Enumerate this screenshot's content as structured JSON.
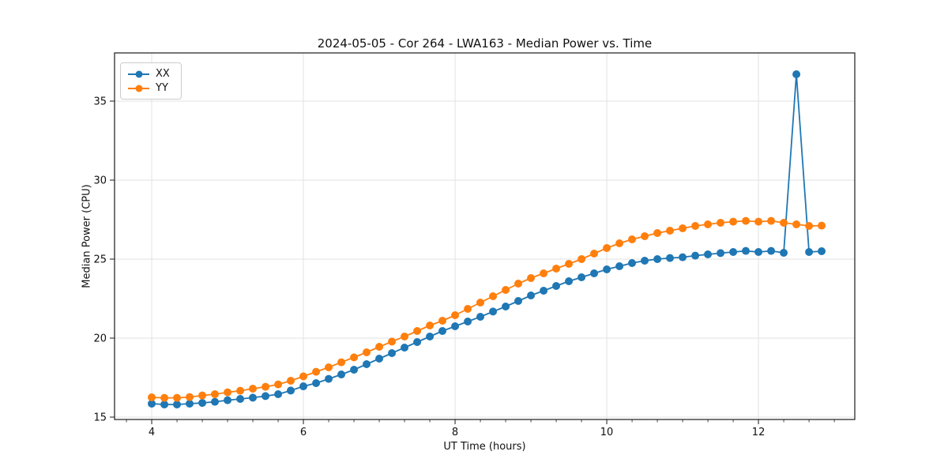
{
  "figure": {
    "title": "2024-05-05 - Cor 264 - LWA163 - Median Power vs. Time",
    "background": "#ffffff"
  },
  "chart_data": {
    "type": "line",
    "title": "2024-05-05 - Cor 264 - LWA163 - Median Power vs. Time",
    "xlabel": "UT Time (hours)",
    "ylabel": "Median Power (CPU)",
    "xlim": [
      3.51,
      13.27
    ],
    "ylim": [
      14.85,
      38.05
    ],
    "xticks": [
      4,
      6,
      8,
      10,
      12
    ],
    "yticks": [
      15,
      20,
      25,
      30,
      35
    ],
    "x_minor_step": 0.3333,
    "grid": true,
    "grid_color": "#e2e2e2",
    "legend_position": "upper left",
    "x": [
      4.0,
      4.167,
      4.333,
      4.5,
      4.667,
      4.833,
      5.0,
      5.167,
      5.333,
      5.5,
      5.667,
      5.833,
      6.0,
      6.167,
      6.333,
      6.5,
      6.667,
      6.833,
      7.0,
      7.167,
      7.333,
      7.5,
      7.667,
      7.833,
      8.0,
      8.167,
      8.333,
      8.5,
      8.667,
      8.833,
      9.0,
      9.167,
      9.333,
      9.5,
      9.667,
      9.833,
      10.0,
      10.167,
      10.333,
      10.5,
      10.667,
      10.833,
      11.0,
      11.167,
      11.333,
      11.5,
      11.667,
      11.833,
      12.0,
      12.167,
      12.333,
      12.5,
      12.667,
      12.833
    ],
    "series": [
      {
        "name": "XX",
        "color": "#1f77b4",
        "values": [
          15.85,
          15.8,
          15.8,
          15.85,
          15.9,
          15.97,
          16.07,
          16.15,
          16.23,
          16.33,
          16.45,
          16.68,
          16.95,
          17.15,
          17.42,
          17.7,
          18.0,
          18.35,
          18.7,
          19.05,
          19.4,
          19.75,
          20.1,
          20.45,
          20.75,
          21.05,
          21.35,
          21.68,
          22.0,
          22.35,
          22.7,
          23.0,
          23.3,
          23.6,
          23.85,
          24.1,
          24.35,
          24.55,
          24.75,
          24.9,
          25.0,
          25.07,
          25.12,
          25.22,
          25.3,
          25.38,
          25.45,
          25.52,
          25.45,
          25.52,
          25.4,
          36.7,
          25.45,
          25.5
        ]
      },
      {
        "name": "YY",
        "color": "#ff7f0e",
        "values": [
          16.25,
          16.22,
          16.22,
          16.27,
          16.37,
          16.45,
          16.57,
          16.67,
          16.8,
          16.92,
          17.07,
          17.3,
          17.58,
          17.87,
          18.15,
          18.47,
          18.78,
          19.1,
          19.45,
          19.78,
          20.1,
          20.45,
          20.8,
          21.1,
          21.45,
          21.85,
          22.25,
          22.65,
          23.05,
          23.45,
          23.8,
          24.1,
          24.4,
          24.7,
          25.0,
          25.35,
          25.7,
          26.0,
          26.25,
          26.45,
          26.65,
          26.8,
          26.95,
          27.1,
          27.2,
          27.3,
          27.37,
          27.42,
          27.37,
          27.42,
          27.3,
          27.2,
          27.1,
          27.12
        ]
      }
    ]
  },
  "legend": {
    "items": [
      {
        "label": "XX",
        "color": "#1f77b4"
      },
      {
        "label": "YY",
        "color": "#ff7f0e"
      }
    ]
  }
}
